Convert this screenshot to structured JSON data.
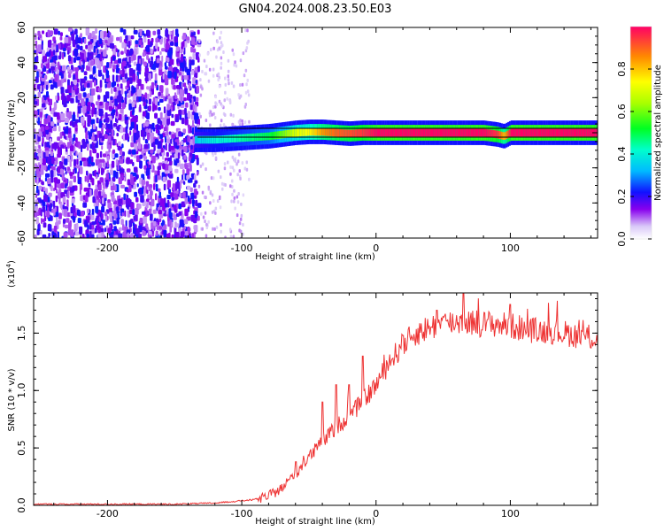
{
  "chart_data": [
    {
      "type": "heatmap",
      "title": "GN04.2024.008.23.50.E03",
      "xlabel": "Height of straight line (km)",
      "ylabel": "Frequency (Hz)",
      "xlim": [
        -255,
        165
      ],
      "ylim": [
        -60,
        60
      ],
      "x_ticks": [
        -200,
        -100,
        0,
        100
      ],
      "x_tick_labels": [
        "-200",
        "-100",
        "0",
        "100"
      ],
      "y_ticks": [
        -60,
        -40,
        -20,
        0,
        20,
        40,
        60
      ],
      "y_tick_labels": [
        "-60",
        "-40",
        "-20",
        "0",
        "20",
        "40",
        "60"
      ],
      "reference_lines_hz": [
        2.5,
        -2.5
      ],
      "colorbar": {
        "label": "Normalized spectral amplitude",
        "range": [
          0,
          1
        ],
        "ticks": [
          0.0,
          0.2,
          0.4,
          0.6,
          0.8
        ],
        "tick_labels": [
          "0.0",
          "0.2",
          "0.4",
          "0.6",
          "0.8"
        ]
      },
      "ridge": {
        "x": [
          -135,
          -120,
          -100,
          -80,
          -70,
          -60,
          -50,
          -40,
          -30,
          -20,
          -10,
          0,
          20,
          40,
          60,
          80,
          90,
          95,
          100,
          120,
          140,
          165
        ],
        "freq": [
          -4,
          -4,
          -3,
          -2,
          -1,
          0,
          0.5,
          0.5,
          0,
          -0.5,
          0,
          0,
          0,
          0,
          0,
          0,
          -1,
          -2,
          0,
          0,
          0,
          0
        ],
        "amplitude": [
          0.35,
          0.4,
          0.45,
          0.5,
          0.6,
          0.7,
          0.75,
          0.85,
          0.9,
          0.92,
          0.95,
          1.0,
          1.0,
          1.0,
          1.0,
          1.0,
          0.95,
          0.8,
          1.0,
          1.0,
          1.0,
          1.0
        ]
      },
      "noise": {
        "dense_x_range": [
          -255,
          -133
        ],
        "dense_amplitude_range": [
          0.05,
          0.2
        ],
        "sparse_x_range": [
          -133,
          -95
        ],
        "sparse_amplitude_range": [
          0.0,
          0.08
        ]
      }
    },
    {
      "type": "line",
      "title": "",
      "xlabel": "Height of straight line (km)",
      "ylabel": "SNR (10 * v/v)",
      "y_scale_label": "(x10",
      "y_scale_exponent": "4",
      "y_scale_close": ")",
      "xlim": [
        -255,
        165
      ],
      "ylim": [
        0,
        1.85
      ],
      "x_ticks": [
        -200,
        -100,
        0,
        100
      ],
      "x_tick_labels": [
        "-200",
        "-100",
        "0",
        "100"
      ],
      "y_ticks": [
        0.0,
        0.5,
        1.0,
        1.5
      ],
      "y_tick_labels": [
        "0.0",
        "0.5",
        "1.0",
        "1.5"
      ],
      "series": [
        {
          "color": "#ee3333",
          "x": [
            -255,
            -200,
            -150,
            -120,
            -100,
            -90,
            -80,
            -70,
            -60,
            -50,
            -40,
            -30,
            -20,
            -10,
            0,
            10,
            20,
            30,
            40,
            50,
            60,
            70,
            80,
            90,
            100,
            110,
            120,
            130,
            140,
            150,
            160,
            165
          ],
          "y": [
            0.01,
            0.01,
            0.01,
            0.02,
            0.04,
            0.05,
            0.08,
            0.15,
            0.28,
            0.42,
            0.55,
            0.68,
            0.78,
            0.9,
            1.05,
            1.25,
            1.4,
            1.5,
            1.55,
            1.58,
            1.6,
            1.6,
            1.58,
            1.58,
            1.56,
            1.54,
            1.52,
            1.52,
            1.5,
            1.48,
            1.46,
            1.45
          ],
          "spikes": [
            [
              -60,
              0.38
            ],
            [
              -40,
              0.9
            ],
            [
              -30,
              1.05
            ],
            [
              -20,
              1.05
            ],
            [
              -10,
              1.3
            ],
            [
              20,
              1.48
            ],
            [
              45,
              1.7
            ],
            [
              65,
              1.85
            ],
            [
              100,
              1.75
            ]
          ]
        }
      ]
    }
  ]
}
